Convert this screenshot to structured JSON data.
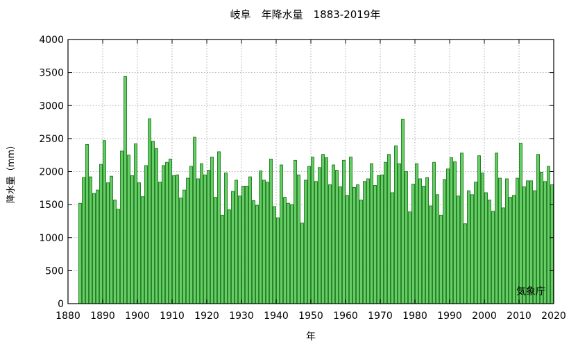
{
  "chart_data": {
    "type": "bar",
    "title": "岐阜　年降水量　1883-2019年",
    "xlabel": "年",
    "ylabel": "降水量（mm）",
    "source_note": "気象庁",
    "xlim": [
      1880,
      2020
    ],
    "ylim": [
      0,
      4000
    ],
    "x_ticks": [
      1880,
      1890,
      1900,
      1910,
      1920,
      1930,
      1940,
      1950,
      1960,
      1970,
      1980,
      1990,
      2000,
      2010,
      2020
    ],
    "y_ticks": [
      0,
      500,
      1000,
      1500,
      2000,
      2500,
      3000,
      3500,
      4000
    ],
    "grid": true,
    "colors": {
      "bar_fill": "#66cc66",
      "bar_stroke": "#1a7a1a",
      "grid": "#999999"
    },
    "start_year": 1883,
    "values": [
      1520,
      1910,
      2410,
      1920,
      1670,
      1720,
      2110,
      2470,
      1830,
      1930,
      1570,
      1430,
      2310,
      3440,
      2250,
      1940,
      2420,
      1830,
      1620,
      2090,
      2800,
      2460,
      2350,
      1840,
      2090,
      2140,
      2190,
      1940,
      1950,
      1600,
      1720,
      1900,
      2080,
      2520,
      1890,
      2120,
      1950,
      2020,
      2220,
      1610,
      2300,
      1340,
      1980,
      1420,
      1700,
      1870,
      1630,
      1780,
      1780,
      1920,
      1560,
      1490,
      2010,
      1870,
      1840,
      2190,
      1470,
      1300,
      2100,
      1610,
      1520,
      1500,
      2170,
      1950,
      1220,
      1870,
      2080,
      2220,
      1850,
      2060,
      2260,
      2210,
      1800,
      2100,
      2020,
      1770,
      2170,
      1640,
      2220,
      1760,
      1800,
      1570,
      1850,
      1890,
      2120,
      1790,
      1940,
      1950,
      2140,
      2260,
      1680,
      2390,
      2120,
      2790,
      2000,
      1390,
      1810,
      2120,
      1890,
      1780,
      1910,
      1480,
      2140,
      1650,
      1340,
      1880,
      2040,
      2210,
      2150,
      1630,
      2280,
      1210,
      1710,
      1650,
      1840,
      2240,
      1980,
      1680,
      1570,
      1400,
      2280,
      1900,
      1450,
      1890,
      1610,
      1640,
      1900,
      2430,
      1770,
      1860,
      1860,
      1710,
      2260,
      1990,
      1850,
      2080,
      1800
    ]
  }
}
